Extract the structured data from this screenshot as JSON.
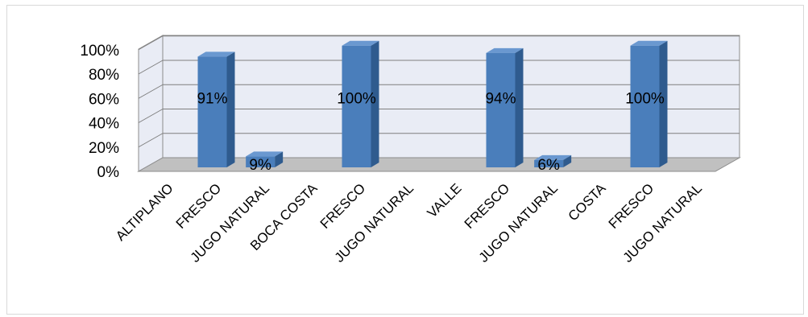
{
  "chart_data": {
    "type": "bar",
    "title": "",
    "xlabel": "",
    "ylabel": "",
    "ylim": [
      0,
      100
    ],
    "y_tick_labels": [
      "0%",
      "20%",
      "40%",
      "60%",
      "80%",
      "100%"
    ],
    "y_ticks": [
      0,
      20,
      40,
      60,
      80,
      100
    ],
    "categories": [
      "ALTIPLANO",
      "FRESCO",
      "JUGO NATURAL",
      "BOCA COSTA",
      "FRESCO",
      "JUGO NATURAL",
      "VALLE",
      "FRESCO",
      "JUGO NATURAL",
      "COSTA",
      "FRESCO",
      "JUGO NATURAL"
    ],
    "values": [
      null,
      91,
      9,
      null,
      100,
      null,
      null,
      94,
      6,
      null,
      100,
      null
    ],
    "data_labels": [
      "",
      "91%",
      "9%",
      "",
      "100%",
      "",
      "",
      "94%",
      "6%",
      "",
      "100%",
      ""
    ],
    "style": "3d-column",
    "grid": true,
    "legend": "none",
    "colors": {
      "bar_front": "#4a7ebb",
      "bar_side": "#2f5b8e",
      "bar_top": "#6a98d0",
      "wall": "#e9ecf5",
      "floor": "#c0c0c0",
      "grid": "#7f7f7f"
    }
  }
}
